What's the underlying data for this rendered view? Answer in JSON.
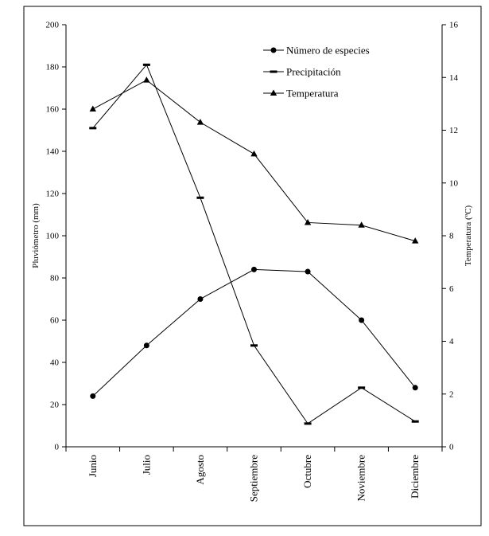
{
  "chart_data": {
    "type": "line",
    "categories": [
      "Junio",
      "Julio",
      "Agosto",
      "Septiembre",
      "Octubre",
      "Noviembre",
      "Diciembre"
    ],
    "y_left": {
      "label": "Pluviómetro (mm)",
      "range": [
        0,
        200
      ],
      "ticks": [
        0,
        20,
        40,
        60,
        80,
        100,
        120,
        140,
        160,
        180,
        200
      ]
    },
    "y_right": {
      "label": "Temperatura (ºC)",
      "range": [
        0,
        16
      ],
      "ticks": [
        0,
        2,
        4,
        6,
        8,
        10,
        12,
        14,
        16
      ]
    },
    "series": [
      {
        "name": "Número de especies",
        "axis": "left",
        "marker": "circle",
        "values": [
          24,
          48,
          70,
          84,
          83,
          60,
          28
        ]
      },
      {
        "name": "Precipitación",
        "axis": "left",
        "marker": "dash",
        "values": [
          151,
          181,
          118,
          48,
          11,
          28,
          12
        ]
      },
      {
        "name": "Temperatura",
        "axis": "right",
        "marker": "triangle",
        "values": [
          12.8,
          13.9,
          12.3,
          11.1,
          8.5,
          8.4,
          7.8
        ]
      }
    ],
    "legend_position": "top-right",
    "grid": false
  }
}
